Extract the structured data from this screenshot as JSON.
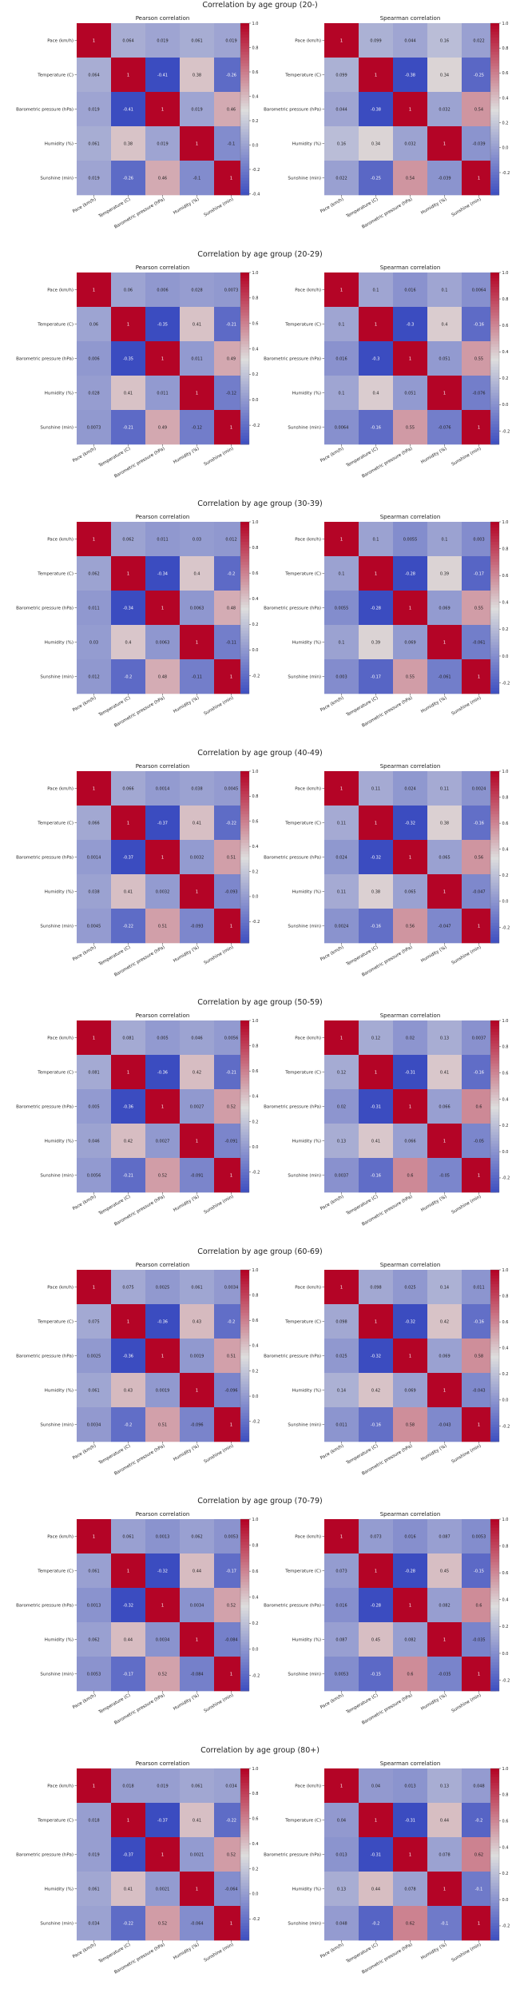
{
  "variables": [
    "Pace (km/h)",
    "Temperature (C)",
    "Barometric pressure (hPa)",
    "Humidity (%)",
    "Sunshine (min)"
  ],
  "colors": {
    "cmap": "coolwarm",
    "low": "#3b4cc0",
    "mid": "#dddddd",
    "high": "#b40426"
  },
  "chart_data": [
    {
      "type": "heatmap",
      "suptitle": "Correlation by age group (20-)",
      "colorbar_ticks": [
        -0.4,
        -0.2,
        0.0,
        0.2,
        0.4,
        0.6,
        0.8,
        1.0
      ],
      "panels": [
        {
          "title": "Pearson correlation",
          "vmin": -0.41,
          "matrix": [
            [
              1,
              0.064,
              0.019,
              0.061,
              0.019
            ],
            [
              0.064,
              1,
              -0.41,
              0.38,
              -0.26
            ],
            [
              0.019,
              -0.41,
              1,
              0.019,
              0.46
            ],
            [
              0.061,
              0.38,
              0.019,
              1,
              -0.1
            ],
            [
              0.019,
              -0.26,
              0.46,
              -0.1,
              1
            ]
          ]
        },
        {
          "title": "Spearman correlation",
          "vmin": -0.38,
          "matrix": [
            [
              1,
              0.099,
              0.044,
              0.16,
              0.022
            ],
            [
              0.099,
              1,
              -0.38,
              0.34,
              -0.25
            ],
            [
              0.044,
              -0.38,
              1,
              0.032,
              0.54
            ],
            [
              0.16,
              0.34,
              0.032,
              1,
              -0.039
            ],
            [
              0.022,
              -0.25,
              0.54,
              -0.039,
              1
            ]
          ]
        }
      ]
    },
    {
      "type": "heatmap",
      "suptitle": "Correlation by age group (20-29)",
      "colorbar_ticks": [
        -0.2,
        0.0,
        0.2,
        0.4,
        0.6,
        0.8,
        1.0
      ],
      "panels": [
        {
          "title": "Pearson correlation",
          "vmin": -0.35,
          "matrix": [
            [
              1,
              0.06,
              0.006,
              0.028,
              0.0073
            ],
            [
              0.06,
              1,
              -0.35,
              0.41,
              -0.21
            ],
            [
              0.006,
              -0.35,
              1,
              0.011,
              0.49
            ],
            [
              0.028,
              0.41,
              0.011,
              1,
              -0.12
            ],
            [
              0.0073,
              -0.21,
              0.49,
              -0.12,
              1
            ]
          ]
        },
        {
          "title": "Spearman correlation",
          "vmin": -0.3,
          "matrix": [
            [
              1,
              0.1,
              0.016,
              0.1,
              0.0064
            ],
            [
              0.1,
              1,
              -0.3,
              0.4,
              -0.16
            ],
            [
              0.016,
              -0.3,
              1,
              0.051,
              0.55
            ],
            [
              0.1,
              0.4,
              0.051,
              1,
              -0.076
            ],
            [
              0.0064,
              -0.16,
              0.55,
              -0.076,
              1
            ]
          ]
        }
      ]
    },
    {
      "type": "heatmap",
      "suptitle": "Correlation by age group (30-39)",
      "colorbar_ticks": [
        -0.2,
        0.0,
        0.2,
        0.4,
        0.6,
        0.8,
        1.0
      ],
      "panels": [
        {
          "title": "Pearson correlation",
          "vmin": -0.34,
          "matrix": [
            [
              1,
              0.062,
              0.011,
              0.03,
              0.012
            ],
            [
              0.062,
              1,
              -0.34,
              0.4,
              -0.2
            ],
            [
              0.011,
              -0.34,
              1,
              0.0063,
              0.48
            ],
            [
              0.03,
              0.4,
              0.0063,
              1,
              -0.11
            ],
            [
              0.012,
              -0.2,
              0.48,
              -0.11,
              1
            ]
          ]
        },
        {
          "title": "Spearman correlation",
          "vmin": -0.28,
          "matrix": [
            [
              1,
              0.1,
              0.0055,
              0.1,
              0.003
            ],
            [
              0.1,
              1,
              -0.28,
              0.39,
              -0.17
            ],
            [
              0.0055,
              -0.28,
              1,
              0.069,
              0.55
            ],
            [
              0.1,
              0.39,
              0.069,
              1,
              -0.061
            ],
            [
              0.003,
              -0.17,
              0.55,
              -0.061,
              1
            ]
          ]
        }
      ]
    },
    {
      "type": "heatmap",
      "suptitle": "Correlation by age group (40-49)",
      "colorbar_ticks": [
        -0.2,
        0.0,
        0.2,
        0.4,
        0.6,
        0.8,
        1.0
      ],
      "panels": [
        {
          "title": "Pearson correlation",
          "vmin": -0.37,
          "matrix": [
            [
              1,
              0.066,
              0.0014,
              0.038,
              0.0045
            ],
            [
              0.066,
              1,
              -0.37,
              0.41,
              -0.22
            ],
            [
              0.0014,
              -0.37,
              1,
              0.0032,
              0.51
            ],
            [
              0.038,
              0.41,
              0.0032,
              1,
              -0.093
            ],
            [
              0.0045,
              -0.22,
              0.51,
              -0.093,
              1
            ]
          ]
        },
        {
          "title": "Spearman correlation",
          "vmin": -0.32,
          "matrix": [
            [
              1,
              0.11,
              0.024,
              0.11,
              0.0024
            ],
            [
              0.11,
              1,
              -0.32,
              0.38,
              -0.16
            ],
            [
              0.024,
              -0.32,
              1,
              0.065,
              0.56
            ],
            [
              0.11,
              0.38,
              0.065,
              1,
              -0.047
            ],
            [
              0.0024,
              -0.16,
              0.56,
              -0.047,
              1
            ]
          ]
        }
      ]
    },
    {
      "type": "heatmap",
      "suptitle": "Correlation by age group (50-59)",
      "colorbar_ticks": [
        -0.2,
        0.0,
        0.2,
        0.4,
        0.6,
        0.8,
        1.0
      ],
      "panels": [
        {
          "title": "Pearson correlation",
          "vmin": -0.36,
          "matrix": [
            [
              1,
              0.081,
              0.005,
              0.046,
              0.0056
            ],
            [
              0.081,
              1,
              -0.36,
              0.42,
              -0.21
            ],
            [
              0.005,
              -0.36,
              1,
              0.0027,
              0.52
            ],
            [
              0.046,
              0.42,
              0.0027,
              1,
              -0.091
            ],
            [
              0.0056,
              -0.21,
              0.52,
              -0.091,
              1
            ]
          ]
        },
        {
          "title": "Spearman correlation",
          "vmin": -0.31,
          "matrix": [
            [
              1,
              0.12,
              0.02,
              0.13,
              0.0037
            ],
            [
              0.12,
              1,
              -0.31,
              0.41,
              -0.16
            ],
            [
              0.02,
              -0.31,
              1,
              0.066,
              0.6
            ],
            [
              0.13,
              0.41,
              0.066,
              1,
              -0.05
            ],
            [
              0.0037,
              -0.16,
              0.6,
              -0.05,
              1
            ]
          ]
        }
      ]
    },
    {
      "type": "heatmap",
      "suptitle": "Correlation by age group (60-69)",
      "colorbar_ticks": [
        -0.2,
        0.0,
        0.2,
        0.4,
        0.6,
        0.8,
        1.0
      ],
      "panels": [
        {
          "title": "Pearson correlation",
          "vmin": -0.36,
          "matrix": [
            [
              1,
              0.075,
              0.0025,
              0.061,
              0.0034
            ],
            [
              0.075,
              1,
              -0.36,
              0.43,
              -0.2
            ],
            [
              0.0025,
              -0.36,
              1,
              0.0019,
              0.51
            ],
            [
              0.061,
              0.43,
              0.0019,
              1,
              -0.096
            ],
            [
              0.0034,
              -0.2,
              0.51,
              -0.096,
              1
            ]
          ]
        },
        {
          "title": "Spearman correlation",
          "vmin": -0.32,
          "matrix": [
            [
              1,
              0.098,
              0.025,
              0.14,
              0.011
            ],
            [
              0.098,
              1,
              -0.32,
              0.42,
              -0.16
            ],
            [
              0.025,
              -0.32,
              1,
              0.069,
              0.58
            ],
            [
              0.14,
              0.42,
              0.069,
              1,
              -0.043
            ],
            [
              0.011,
              -0.16,
              0.58,
              -0.043,
              1
            ]
          ]
        }
      ]
    },
    {
      "type": "heatmap",
      "suptitle": "Correlation by age group (70-79)",
      "colorbar_ticks": [
        -0.2,
        0.0,
        0.2,
        0.4,
        0.6,
        0.8,
        1.0
      ],
      "panels": [
        {
          "title": "Pearson correlation",
          "vmin": -0.32,
          "matrix": [
            [
              1,
              0.061,
              0.0013,
              0.062,
              0.0053
            ],
            [
              0.061,
              1,
              -0.32,
              0.44,
              -0.17
            ],
            [
              0.0013,
              -0.32,
              1,
              0.0034,
              0.52
            ],
            [
              0.062,
              0.44,
              0.0034,
              1,
              -0.084
            ],
            [
              0.0053,
              -0.17,
              0.52,
              -0.084,
              1
            ]
          ]
        },
        {
          "title": "Spearman correlation",
          "vmin": -0.28,
          "matrix": [
            [
              1,
              0.073,
              0.016,
              0.087,
              0.0053
            ],
            [
              0.073,
              1,
              -0.28,
              0.45,
              -0.15
            ],
            [
              0.016,
              -0.28,
              1,
              0.082,
              0.6
            ],
            [
              0.087,
              0.45,
              0.082,
              1,
              -0.035
            ],
            [
              0.0053,
              -0.15,
              0.6,
              -0.035,
              1
            ]
          ]
        }
      ]
    },
    {
      "type": "heatmap",
      "suptitle": "Correlation by age group (80+)",
      "colorbar_ticks": [
        -0.2,
        0.0,
        0.2,
        0.4,
        0.6,
        0.8,
        1.0
      ],
      "panels": [
        {
          "title": "Pearson correlation",
          "vmin": -0.37,
          "matrix": [
            [
              1,
              0.018,
              0.019,
              0.061,
              0.034
            ],
            [
              0.018,
              1,
              -0.37,
              0.41,
              -0.22
            ],
            [
              0.019,
              -0.37,
              1,
              0.0021,
              0.52
            ],
            [
              0.061,
              0.41,
              0.0021,
              1,
              -0.064
            ],
            [
              0.034,
              -0.22,
              0.52,
              -0.064,
              1
            ]
          ]
        },
        {
          "title": "Spearman correlation",
          "vmin": -0.31,
          "matrix": [
            [
              1,
              0.04,
              0.013,
              0.13,
              0.048
            ],
            [
              0.04,
              1,
              -0.31,
              0.44,
              -0.2
            ],
            [
              0.013,
              -0.31,
              1,
              0.078,
              0.62
            ],
            [
              0.13,
              0.44,
              0.078,
              1,
              -0.1
            ],
            [
              0.048,
              -0.2,
              0.62,
              -0.1,
              1
            ]
          ]
        }
      ]
    }
  ]
}
